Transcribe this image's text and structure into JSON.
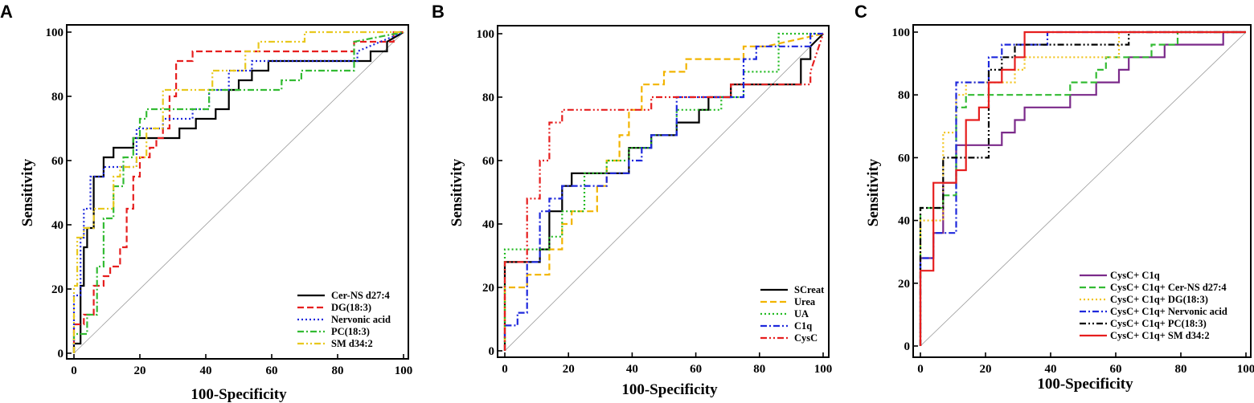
{
  "chart_data": [
    {
      "type": "line",
      "panel_label": "A",
      "xlabel": "100-Specificity",
      "ylabel": "Sensitivity",
      "xlim": [
        0,
        100
      ],
      "ylim": [
        0,
        100
      ],
      "xticks": [
        "0",
        "20",
        "40",
        "60",
        "80",
        "100"
      ],
      "yticks": [
        "0",
        "20",
        "40",
        "60",
        "80",
        "100"
      ],
      "legend_position": "bottom-right",
      "series": [
        {
          "name": "Cer-NS d27:4",
          "color": "#000000",
          "dash": "solid",
          "x": [
            0,
            0,
            2,
            2,
            3,
            3,
            4,
            4,
            6,
            6,
            9,
            9,
            12,
            12,
            18,
            18,
            32,
            32,
            37,
            37,
            43,
            43,
            47,
            47,
            50,
            50,
            54,
            54,
            59,
            59,
            90,
            90,
            95,
            95,
            100
          ],
          "y": [
            0,
            3,
            3,
            21,
            21,
            33,
            33,
            39,
            39,
            55,
            55,
            61,
            61,
            64,
            64,
            67,
            67,
            70,
            70,
            73,
            73,
            76,
            76,
            82,
            82,
            85,
            85,
            88,
            88,
            91,
            91,
            94,
            94,
            97,
            100
          ]
        },
        {
          "name": "DG(18:3)",
          "color": "#e61e1e",
          "dash": "dashed",
          "x": [
            0,
            0,
            3,
            3,
            6,
            6,
            9,
            9,
            11,
            11,
            14,
            14,
            16,
            16,
            18,
            18,
            20,
            20,
            23,
            23,
            25,
            25,
            27,
            27,
            29,
            29,
            31,
            31,
            36,
            36,
            85,
            85,
            97,
            97,
            100
          ],
          "y": [
            0,
            9,
            9,
            12,
            12,
            21,
            21,
            24,
            24,
            27,
            27,
            33,
            33,
            45,
            45,
            55,
            55,
            61,
            61,
            64,
            64,
            67,
            67,
            70,
            70,
            80,
            80,
            91,
            91,
            94,
            94,
            97,
            97,
            100,
            100
          ]
        },
        {
          "name": "Nervonic acid",
          "color": "#1e28dc",
          "dash": "dotted",
          "x": [
            0,
            0,
            2,
            2,
            3,
            3,
            5,
            5,
            9,
            9,
            13,
            13,
            19,
            19,
            27,
            27,
            36,
            36,
            41,
            41,
            47,
            47,
            54,
            54,
            86,
            86,
            100
          ],
          "y": [
            0,
            18,
            18,
            36,
            36,
            45,
            45,
            55,
            55,
            58,
            58,
            58,
            58,
            70,
            70,
            73,
            73,
            76,
            76,
            82,
            82,
            88,
            88,
            91,
            91,
            94,
            100
          ]
        },
        {
          "name": "PC(18:3)",
          "color": "#33bb33",
          "dash": "dashdot",
          "x": [
            0,
            0,
            4,
            4,
            7,
            7,
            9,
            9,
            12,
            12,
            15,
            15,
            18,
            18,
            20,
            20,
            22,
            22,
            41,
            41,
            63,
            63,
            69,
            69,
            85,
            85,
            100
          ],
          "y": [
            0,
            6,
            6,
            12,
            12,
            27,
            27,
            42,
            42,
            52,
            52,
            61,
            61,
            67,
            67,
            73,
            73,
            76,
            76,
            82,
            82,
            85,
            85,
            88,
            88,
            97,
            100
          ]
        },
        {
          "name": "SM d34:2",
          "color": "#e8c81e",
          "dash": "dashdotdot",
          "x": [
            0,
            0,
            1,
            1,
            3,
            3,
            6,
            6,
            12,
            12,
            14,
            14,
            19,
            19,
            22,
            22,
            27,
            27,
            30,
            30,
            42,
            42,
            52,
            52,
            56,
            56,
            70,
            70,
            100
          ],
          "y": [
            0,
            21,
            21,
            36,
            36,
            39,
            39,
            45,
            45,
            55,
            55,
            58,
            58,
            61,
            61,
            70,
            70,
            82,
            82,
            82,
            82,
            88,
            88,
            94,
            94,
            97,
            97,
            100,
            100
          ]
        }
      ]
    },
    {
      "type": "line",
      "panel_label": "B",
      "xlabel": "100-Specificity",
      "ylabel": "Sensitivity",
      "xlim": [
        0,
        100
      ],
      "ylim": [
        0,
        100
      ],
      "xticks": [
        "0",
        "20",
        "40",
        "60",
        "80",
        "100"
      ],
      "yticks": [
        "0",
        "20",
        "40",
        "60",
        "80",
        "100"
      ],
      "legend_position": "bottom-right",
      "series": [
        {
          "name": "SCreat",
          "color": "#000000",
          "dash": "solid",
          "x": [
            0,
            0,
            11,
            11,
            14,
            14,
            18,
            18,
            21,
            21,
            39,
            39,
            46,
            46,
            54,
            54,
            61,
            61,
            64,
            64,
            71,
            71,
            86,
            86,
            93,
            93,
            96,
            96,
            100
          ],
          "y": [
            0,
            28,
            28,
            32,
            32,
            44,
            44,
            52,
            52,
            56,
            56,
            64,
            64,
            68,
            68,
            72,
            72,
            76,
            76,
            80,
            80,
            84,
            84,
            84,
            84,
            92,
            92,
            96,
            100
          ]
        },
        {
          "name": "Urea",
          "color": "#f2b400",
          "dash": "dashed",
          "x": [
            0,
            0,
            7,
            7,
            14,
            14,
            18,
            18,
            21,
            21,
            29,
            29,
            32,
            32,
            36,
            36,
            39,
            39,
            43,
            43,
            50,
            50,
            57,
            57,
            75,
            75,
            82,
            82,
            100
          ],
          "y": [
            0,
            20,
            20,
            24,
            24,
            32,
            32,
            40,
            40,
            44,
            44,
            52,
            52,
            60,
            60,
            68,
            68,
            76,
            76,
            84,
            84,
            88,
            88,
            92,
            92,
            96,
            96,
            96,
            100
          ]
        },
        {
          "name": "UA",
          "color": "#22bb22",
          "dash": "dotted",
          "x": [
            0,
            0,
            14,
            14,
            18,
            18,
            25,
            25,
            32,
            32,
            39,
            39,
            46,
            46,
            54,
            54,
            68,
            68,
            75,
            75,
            86,
            86,
            100
          ],
          "y": [
            0,
            32,
            32,
            36,
            36,
            44,
            44,
            56,
            56,
            60,
            60,
            64,
            64,
            68,
            68,
            76,
            76,
            80,
            80,
            88,
            88,
            100,
            100
          ]
        },
        {
          "name": "C1q",
          "color": "#1e28dc",
          "dash": "dashdot",
          "x": [
            0,
            0,
            4,
            4,
            7,
            7,
            11,
            11,
            14,
            14,
            18,
            18,
            21,
            21,
            32,
            32,
            39,
            39,
            43,
            43,
            46,
            46,
            54,
            54,
            75,
            75,
            79,
            79,
            96,
            96,
            100
          ],
          "y": [
            0,
            8,
            8,
            12,
            12,
            28,
            28,
            44,
            44,
            48,
            48,
            52,
            52,
            52,
            52,
            56,
            56,
            60,
            60,
            64,
            64,
            68,
            68,
            80,
            80,
            92,
            92,
            96,
            96,
            100,
            100
          ]
        },
        {
          "name": "CysC",
          "color": "#e61e1e",
          "dash": "dashdotdot",
          "x": [
            0,
            0,
            7,
            7,
            11,
            11,
            14,
            14,
            18,
            18,
            21,
            21,
            46,
            46,
            50,
            50,
            71,
            71,
            89,
            89,
            96,
            96,
            100
          ],
          "y": [
            0,
            28,
            28,
            48,
            48,
            60,
            60,
            72,
            72,
            76,
            76,
            76,
            76,
            80,
            80,
            80,
            80,
            84,
            84,
            84,
            84,
            88,
            100
          ]
        }
      ]
    },
    {
      "type": "line",
      "panel_label": "C",
      "xlabel": "100-Specificity",
      "ylabel": "Sensitivity",
      "xlim": [
        0,
        100
      ],
      "ylim": [
        0,
        100
      ],
      "xticks": [
        "0",
        "20",
        "40",
        "60",
        "80",
        "100"
      ],
      "yticks": [
        "0",
        "20",
        "40",
        "60",
        "80",
        "100"
      ],
      "legend_position": "bottom-right",
      "series": [
        {
          "name": "CysC+ C1q",
          "color": "#7b2a8a",
          "dash": "solid",
          "x": [
            0,
            0,
            4,
            4,
            7,
            7,
            11,
            11,
            25,
            25,
            29,
            29,
            32,
            32,
            46,
            46,
            54,
            54,
            61,
            61,
            64,
            64,
            75,
            75,
            93,
            93,
            100
          ],
          "y": [
            0,
            28,
            28,
            36,
            36,
            52,
            52,
            64,
            64,
            68,
            68,
            72,
            72,
            76,
            76,
            80,
            80,
            84,
            84,
            88,
            88,
            92,
            92,
            96,
            96,
            100,
            100
          ]
        },
        {
          "name": "CysC+ C1q+ Cer-NS d27:4",
          "color": "#33bb33",
          "dash": "dashed",
          "x": [
            0,
            0,
            7,
            7,
            11,
            11,
            14,
            14,
            18,
            18,
            46,
            46,
            54,
            54,
            57,
            57,
            68,
            68,
            71,
            71,
            79,
            79,
            100
          ],
          "y": [
            0,
            44,
            44,
            48,
            48,
            76,
            76,
            80,
            80,
            80,
            80,
            84,
            84,
            88,
            88,
            92,
            92,
            92,
            92,
            96,
            96,
            100,
            100
          ]
        },
        {
          "name": "CysC+ C1q+ DG(18:3)",
          "color": "#f2c41e",
          "dash": "dotted",
          "x": [
            0,
            0,
            7,
            7,
            11,
            11,
            14,
            14,
            25,
            25,
            29,
            29,
            32,
            32,
            36,
            36,
            61,
            61,
            100
          ],
          "y": [
            0,
            40,
            40,
            68,
            68,
            80,
            80,
            84,
            84,
            84,
            84,
            88,
            88,
            92,
            92,
            92,
            92,
            100,
            100
          ]
        },
        {
          "name": "CysC+ C1q+ Nervonic acid",
          "color": "#1e28dc",
          "dash": "dashdot",
          "x": [
            0,
            0,
            4,
            4,
            11,
            11,
            21,
            21,
            25,
            25,
            29,
            29,
            39,
            39,
            43,
            43,
            100
          ],
          "y": [
            0,
            28,
            28,
            36,
            36,
            84,
            84,
            92,
            92,
            96,
            96,
            96,
            96,
            100,
            100,
            100,
            100
          ]
        },
        {
          "name": "CysC+ C1q+ PC(18:3)",
          "color": "#000000",
          "dash": "dashdotdot",
          "x": [
            0,
            0,
            7,
            7,
            21,
            21,
            25,
            25,
            29,
            29,
            64,
            64,
            100
          ],
          "y": [
            0,
            44,
            44,
            60,
            60,
            88,
            88,
            92,
            92,
            96,
            96,
            100,
            100
          ]
        },
        {
          "name": "CysC+ C1q+ SM d34:2",
          "color": "#e61e1e",
          "dash": "solid",
          "x": [
            0,
            0,
            4,
            4,
            11,
            11,
            14,
            14,
            18,
            18,
            21,
            21,
            25,
            25,
            29,
            29,
            32,
            32,
            36,
            36,
            100
          ],
          "y": [
            0,
            24,
            24,
            52,
            52,
            56,
            56,
            72,
            72,
            76,
            76,
            84,
            84,
            88,
            88,
            92,
            92,
            100,
            100,
            100,
            100
          ]
        }
      ]
    }
  ]
}
